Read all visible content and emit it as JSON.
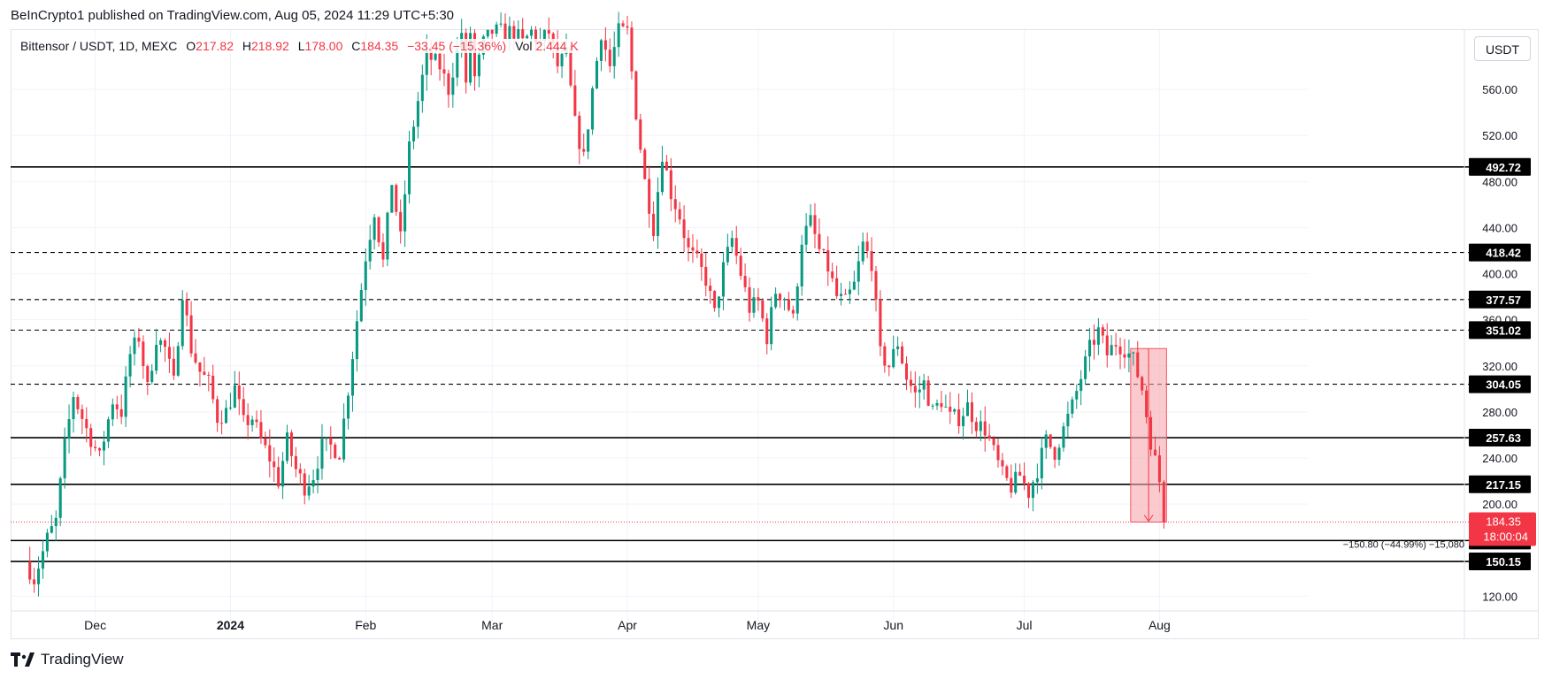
{
  "header": {
    "published_text": "BeInCrypto1 published on TradingView.com, Aug 05, 2024 11:29 UTC+5:30"
  },
  "legend": {
    "symbol": "Bittensor / USDT, 1D, MEXC",
    "o_label": "O",
    "o_value": "217.82",
    "h_label": "H",
    "h_value": "218.92",
    "l_label": "L",
    "l_value": "178.00",
    "c_label": "C",
    "c_value": "184.35",
    "change": "−33.45 (−15.36%)",
    "vol_label": "Vol",
    "vol_value": "2.444 K"
  },
  "currency_button": "USDT",
  "footer": {
    "brand": "TradingView"
  },
  "colors": {
    "up": "#089981",
    "down": "#f23645",
    "line": "#000000",
    "grid": "#f0f3fa",
    "zone": "#f7a9ae"
  },
  "chart_data": {
    "type": "candlestick",
    "y_ticks": [
      "560.00",
      "520.00",
      "480.00",
      "440.00",
      "400.00",
      "360.00",
      "320.00",
      "280.00",
      "240.00",
      "200.00",
      "120.00"
    ],
    "y_tick_values": [
      560,
      520,
      480,
      440,
      400,
      360,
      320,
      280,
      240,
      200,
      120
    ],
    "x_ticks": [
      "Dec",
      "2024",
      "Feb",
      "Mar",
      "Apr",
      "May",
      "Jun",
      "Jul",
      "Aug"
    ],
    "x_tick_days": [
      16,
      47,
      78,
      107,
      138,
      168,
      199,
      229,
      260
    ],
    "ylim": [
      98,
      610
    ],
    "xlim": [
      -3.4,
      294
    ],
    "levels": [
      {
        "value": 492.72,
        "label": "492.72",
        "style": "solid"
      },
      {
        "value": 418.42,
        "label": "418.42",
        "style": "dashed"
      },
      {
        "value": 377.57,
        "label": "377.57",
        "style": "dashed"
      },
      {
        "value": 351.02,
        "label": "351.02",
        "style": "dashed"
      },
      {
        "value": 304.05,
        "label": "304.05",
        "style": "dashed"
      },
      {
        "value": 257.63,
        "label": "257.63",
        "style": "solid"
      },
      {
        "value": 217.15,
        "label": "217.15",
        "style": "solid"
      },
      {
        "value": 168.33,
        "label": "168.33",
        "style": "solid"
      },
      {
        "value": 150.15,
        "label": "150.15",
        "style": "solid"
      }
    ],
    "last_price": {
      "value": 184.35,
      "label": "184.35",
      "countdown": "18:00:04"
    },
    "measure": {
      "text": "−150.80 (−44.99%) −15,080",
      "from": 335.0,
      "to": 184.35,
      "day_start": 254,
      "day_end": 261
    },
    "key_points": [
      [
        0,
        150
      ],
      [
        2,
        135
      ],
      [
        5,
        170
      ],
      [
        7,
        185
      ],
      [
        9,
        250
      ],
      [
        11,
        295
      ],
      [
        14,
        265
      ],
      [
        17,
        240
      ],
      [
        20,
        290
      ],
      [
        22,
        280
      ],
      [
        24,
        330
      ],
      [
        26,
        345
      ],
      [
        28,
        300
      ],
      [
        30,
        345
      ],
      [
        32,
        335
      ],
      [
        34,
        305
      ],
      [
        36,
        385
      ],
      [
        38,
        335
      ],
      [
        40,
        315
      ],
      [
        42,
        305
      ],
      [
        44,
        275
      ],
      [
        46,
        280
      ],
      [
        48,
        300
      ],
      [
        50,
        270
      ],
      [
        52,
        275
      ],
      [
        54,
        255
      ],
      [
        56,
        240
      ],
      [
        58,
        220
      ],
      [
        60,
        255
      ],
      [
        62,
        230
      ],
      [
        64,
        215
      ],
      [
        66,
        225
      ],
      [
        68,
        250
      ],
      [
        70,
        250
      ],
      [
        72,
        245
      ],
      [
        74,
        300
      ],
      [
        76,
        360
      ],
      [
        78,
        415
      ],
      [
        80,
        455
      ],
      [
        82,
        410
      ],
      [
        84,
        480
      ],
      [
        86,
        430
      ],
      [
        88,
        510
      ],
      [
        90,
        550
      ],
      [
        92,
        590
      ],
      [
        95,
        580
      ],
      [
        97,
        560
      ],
      [
        100,
        610
      ],
      [
        101,
        560
      ],
      [
        102,
        610
      ],
      [
        103,
        570
      ],
      [
        105,
        600
      ],
      [
        107,
        610
      ],
      [
        110,
        610
      ],
      [
        112,
        610
      ],
      [
        114,
        600
      ],
      [
        116,
        610
      ],
      [
        118,
        600
      ],
      [
        120,
        610
      ],
      [
        122,
        580
      ],
      [
        124,
        590
      ],
      [
        126,
        530
      ],
      [
        128,
        500
      ],
      [
        130,
        560
      ],
      [
        132,
        610
      ],
      [
        134,
        580
      ],
      [
        136,
        610
      ],
      [
        138,
        610
      ],
      [
        140,
        540
      ],
      [
        142,
        480
      ],
      [
        144,
        440
      ],
      [
        146,
        505
      ],
      [
        148,
        470
      ],
      [
        150,
        450
      ],
      [
        152,
        420
      ],
      [
        154,
        410
      ],
      [
        156,
        395
      ],
      [
        158,
        365
      ],
      [
        160,
        405
      ],
      [
        162,
        430
      ],
      [
        164,
        400
      ],
      [
        166,
        370
      ],
      [
        168,
        375
      ],
      [
        170,
        345
      ],
      [
        172,
        385
      ],
      [
        174,
        380
      ],
      [
        176,
        360
      ],
      [
        178,
        430
      ],
      [
        180,
        445
      ],
      [
        182,
        420
      ],
      [
        184,
        405
      ],
      [
        186,
        380
      ],
      [
        188,
        375
      ],
      [
        190,
        390
      ],
      [
        192,
        425
      ],
      [
        194,
        410
      ],
      [
        196,
        330
      ],
      [
        198,
        320
      ],
      [
        200,
        340
      ],
      [
        202,
        310
      ],
      [
        204,
        295
      ],
      [
        206,
        305
      ],
      [
        208,
        280
      ],
      [
        210,
        290
      ],
      [
        212,
        275
      ],
      [
        214,
        275
      ],
      [
        216,
        285
      ],
      [
        218,
        270
      ],
      [
        220,
        265
      ],
      [
        222,
        245
      ],
      [
        224,
        225
      ],
      [
        226,
        215
      ],
      [
        228,
        225
      ],
      [
        230,
        210
      ],
      [
        232,
        230
      ],
      [
        234,
        255
      ],
      [
        236,
        245
      ],
      [
        238,
        265
      ],
      [
        240,
        285
      ],
      [
        242,
        310
      ],
      [
        244,
        335
      ],
      [
        246,
        350
      ],
      [
        248,
        330
      ],
      [
        250,
        340
      ],
      [
        252,
        335
      ],
      [
        254,
        325
      ],
      [
        256,
        300
      ],
      [
        258,
        255
      ],
      [
        260,
        220
      ],
      [
        261,
        184.35
      ]
    ]
  }
}
